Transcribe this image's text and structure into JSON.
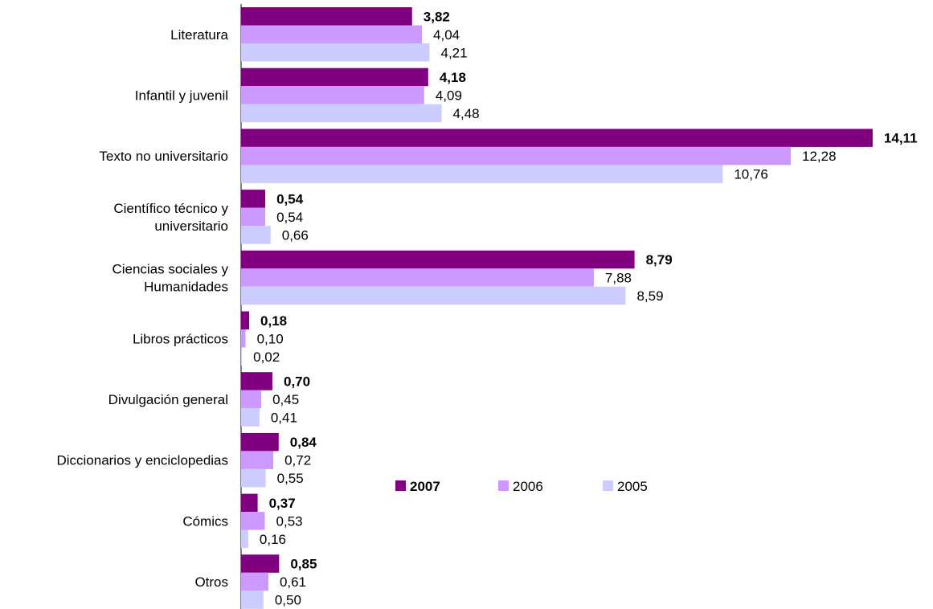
{
  "chart_data": {
    "type": "bar",
    "orientation": "horizontal",
    "categories": [
      [
        "Literatura"
      ],
      [
        "Infantil y juvenil"
      ],
      [
        "Texto no universitario"
      ],
      [
        "Científico técnico y",
        "universitario"
      ],
      [
        "Ciencias sociales y",
        "Humanidades"
      ],
      [
        "Libros prácticos"
      ],
      [
        "Divulgación general"
      ],
      [
        "Diccionarios y enciclopedias"
      ],
      [
        "Cómics"
      ],
      [
        "Otros"
      ]
    ],
    "series": [
      {
        "name": "2007",
        "color": "#800080",
        "bold": true,
        "values": [
          3.82,
          4.18,
          14.11,
          0.54,
          8.79,
          0.18,
          0.7,
          0.84,
          0.37,
          0.85
        ],
        "labels": [
          "3,82",
          "4,18",
          "14,11",
          "0,54",
          "8,79",
          "0,18",
          "0,70",
          "0,84",
          "0,37",
          "0,85"
        ]
      },
      {
        "name": "2006",
        "color": "#CC99FF",
        "bold": false,
        "values": [
          4.04,
          4.09,
          12.28,
          0.54,
          7.88,
          0.1,
          0.45,
          0.72,
          0.53,
          0.61
        ],
        "labels": [
          "4,04",
          "4,09",
          "12,28",
          "0,54",
          "7,88",
          "0,10",
          "0,45",
          "0,72",
          "0,53",
          "0,61"
        ]
      },
      {
        "name": "2005",
        "color": "#CCCCFF",
        "bold": false,
        "values": [
          4.21,
          4.48,
          10.76,
          0.66,
          8.59,
          0.02,
          0.41,
          0.55,
          0.16,
          0.5
        ],
        "labels": [
          "4,21",
          "4,48",
          "10,76",
          "0,66",
          "8,59",
          "0,02",
          "0,41",
          "0,55",
          "0,16",
          "0,50"
        ]
      }
    ],
    "xlim": [
      0,
      14.5
    ],
    "grid": false,
    "legend": "center-right"
  }
}
